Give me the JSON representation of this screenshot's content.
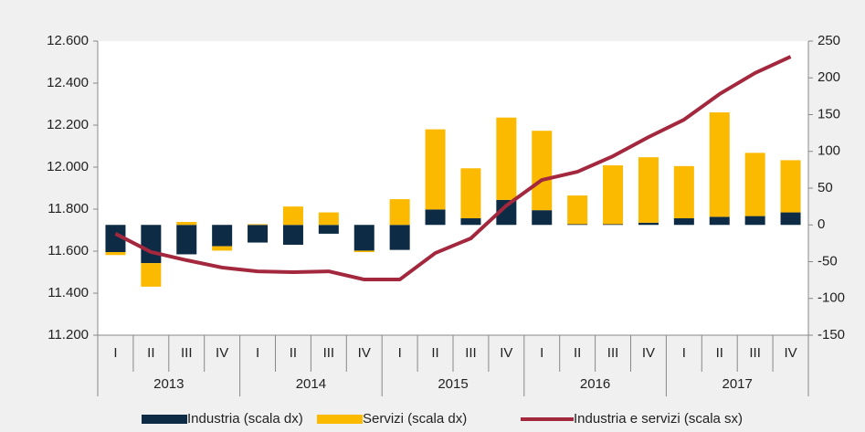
{
  "chart_data": {
    "type": "bar_line",
    "categories": [
      "I",
      "II",
      "III",
      "IV",
      "I",
      "II",
      "III",
      "IV",
      "I",
      "II",
      "III",
      "IV",
      "I",
      "II",
      "III",
      "IV",
      "I",
      "II",
      "III",
      "IV"
    ],
    "years": [
      "2013",
      "2014",
      "2015",
      "2016",
      "2017"
    ],
    "series": [
      {
        "name": "Industria (scala dx)",
        "color": "#0d2b45",
        "axis": "y2",
        "kind": "bar",
        "values": [
          -37,
          -52,
          -40,
          -29,
          -24,
          -27,
          -12,
          -35,
          -34,
          21,
          9,
          34,
          20,
          1,
          1,
          3,
          9,
          11,
          12,
          17
        ]
      },
      {
        "name": "Servizi (scala dx)",
        "color": "#fbb900",
        "axis": "y2",
        "kind": "bar",
        "values": [
          -4,
          -32,
          4,
          -6,
          1,
          25,
          17,
          -2,
          35,
          109,
          68,
          112,
          108,
          39,
          80,
          89,
          71,
          142,
          86,
          71
        ]
      },
      {
        "name": "Industria e servizi (scala sx)",
        "color": "#a3273d",
        "axis": "y",
        "kind": "line",
        "values": [
          11683,
          11596,
          11557,
          11522,
          11504,
          11500,
          11504,
          11465,
          11465,
          11591,
          11661,
          11817,
          11939,
          11978,
          12052,
          12143,
          12226,
          12348,
          12448,
          12526
        ]
      }
    ],
    "ylim": [
      11200,
      12600
    ],
    "yticks": [
      {
        "value": 11200,
        "label": "11.200"
      },
      {
        "value": 11400,
        "label": "11.400"
      },
      {
        "value": 11600,
        "label": "11.600"
      },
      {
        "value": 11800,
        "label": "11.800"
      },
      {
        "value": 12000,
        "label": "12.000"
      },
      {
        "value": 12200,
        "label": "12.200"
      },
      {
        "value": 12400,
        "label": "12.400"
      },
      {
        "value": 12600,
        "label": "12.600"
      }
    ],
    "y2lim": [
      -150,
      250
    ],
    "y2ticks": [
      -150,
      -100,
      -50,
      0,
      50,
      100,
      150,
      200,
      250
    ]
  }
}
